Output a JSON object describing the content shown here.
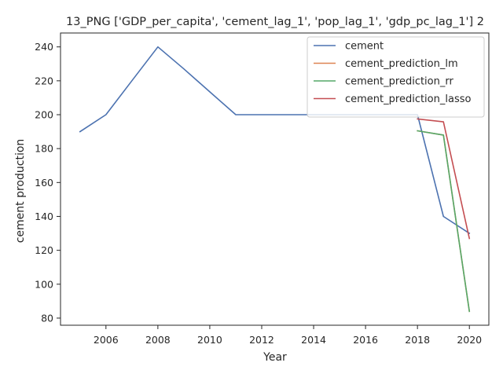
{
  "chart_data": {
    "type": "line",
    "title": "13_PNG ['GDP_per_capita', 'cement_lag_1', 'pop_lag_1', 'gdp_pc_lag_1'] 2",
    "xlabel": "Year",
    "ylabel": "cement production",
    "xlim": [
      2004.25,
      2020.75
    ],
    "ylim": [
      75.8,
      248.2
    ],
    "xticks": [
      2006,
      2008,
      2010,
      2012,
      2014,
      2016,
      2018,
      2020
    ],
    "yticks": [
      80,
      100,
      120,
      140,
      160,
      180,
      200,
      220,
      240
    ],
    "grid": false,
    "legend_position": "top-right",
    "series": [
      {
        "name": "cement",
        "color": "#4c72b0",
        "x": [
          2005,
          2006,
          2007,
          2008,
          2009,
          2010,
          2011,
          2012,
          2013,
          2014,
          2015,
          2016,
          2017,
          2018,
          2019,
          2020
        ],
        "y": [
          190,
          200,
          220,
          240,
          227,
          213.5,
          200,
          200,
          200,
          200,
          200,
          200,
          200,
          200,
          140,
          130
        ]
      },
      {
        "name": "cement_prediction_lm",
        "color": "#dd8452",
        "x": [
          2018,
          2019,
          2020
        ],
        "y": [
          190.5,
          188,
          84
        ]
      },
      {
        "name": "cement_prediction_rr",
        "color": "#55a868",
        "x": [
          2018,
          2019,
          2020
        ],
        "y": [
          190.5,
          188,
          84
        ]
      },
      {
        "name": "cement_prediction_lasso",
        "color": "#c44e52",
        "x": [
          2018,
          2019,
          2020
        ],
        "y": [
          197.5,
          195.8,
          127
        ]
      }
    ]
  }
}
